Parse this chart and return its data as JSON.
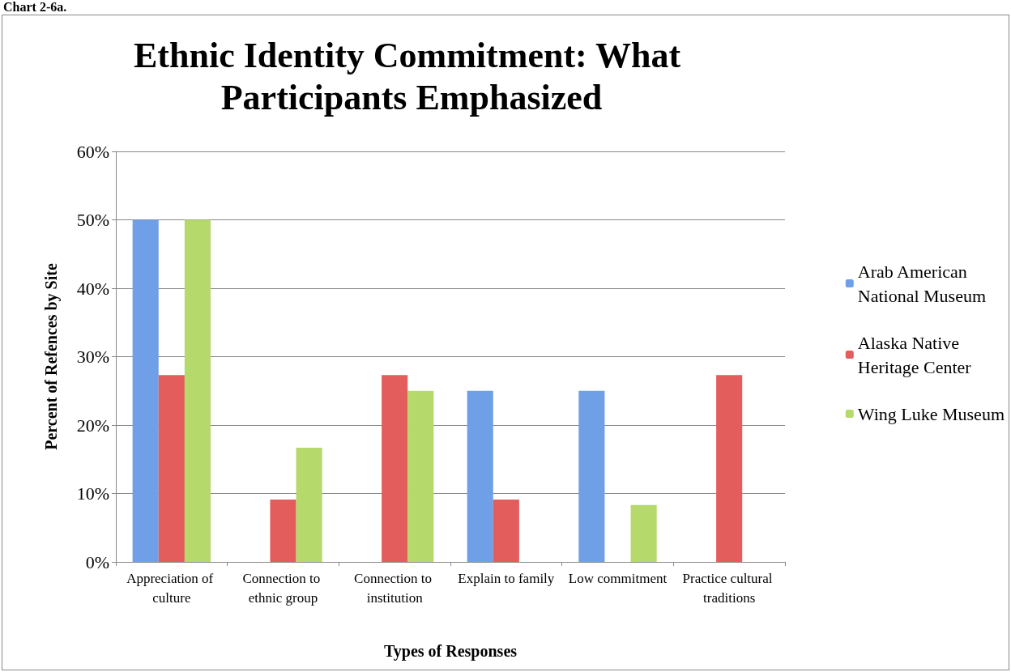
{
  "chart_data": {
    "type": "bar",
    "title": "Ethnic Identity Commitment: What Participants Emphasized",
    "xlabel": "Types of Responses",
    "ylabel": "Percent of Refences by Site",
    "annotations": [
      "Chart 2-6a."
    ],
    "categories": [
      "Appreciation of culture",
      "Connection to ethnic group",
      "Connection to institution",
      "Explain to family",
      "Low commitment",
      "Practice cultural traditions"
    ],
    "series": [
      {
        "name": "Arab American National Museum",
        "color": "#6f9fe6",
        "values": [
          50,
          0,
          0,
          25,
          25,
          0
        ]
      },
      {
        "name": "Alaska Native Heritage Center",
        "color": "#e35d5d",
        "values": [
          27.3,
          9.1,
          27.3,
          9.1,
          0,
          27.3
        ]
      },
      {
        "name": "Wing Luke Museum",
        "color": "#b5d96a",
        "values": [
          50,
          16.7,
          25,
          0,
          8.3,
          0
        ]
      }
    ],
    "ylim": [
      0,
      60
    ],
    "yticks": [
      {
        "value": 0,
        "label": "0%"
      },
      {
        "value": 10,
        "label": "10%"
      },
      {
        "value": 20,
        "label": "20%"
      },
      {
        "value": 30,
        "label": "30%"
      },
      {
        "value": 40,
        "label": "40%"
      },
      {
        "value": 50,
        "label": "50%"
      },
      {
        "value": 60,
        "label": "60%"
      }
    ],
    "grid": "y",
    "legend": "right"
  }
}
